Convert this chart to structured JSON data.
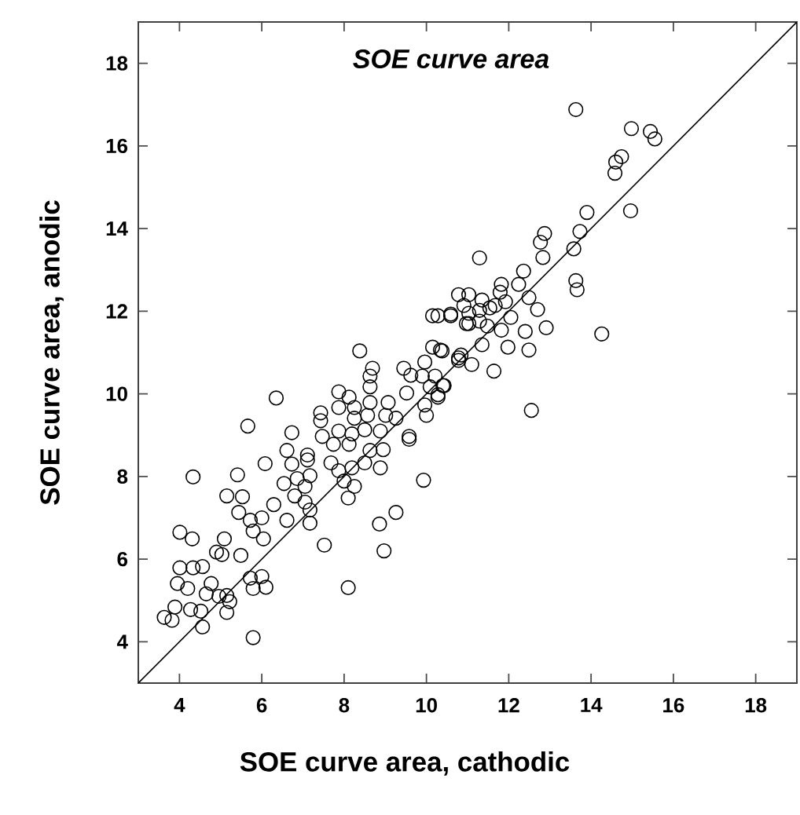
{
  "chart_data": {
    "type": "scatter",
    "title": "SOE curve area",
    "xlabel": "SOE curve area, cathodic",
    "ylabel": "SOE curve area, anodic",
    "xlim": [
      3,
      19
    ],
    "ylim": [
      3,
      19
    ],
    "xticks": [
      4,
      6,
      8,
      10,
      12,
      14,
      16,
      18
    ],
    "yticks": [
      4,
      6,
      8,
      10,
      12,
      14,
      16,
      18
    ],
    "series": [
      {
        "marker": "circle",
        "color": "#000000",
        "x": [
          13.63,
          14.98,
          15.44,
          15.55,
          14.74,
          14.6,
          14.58,
          13.9,
          14.96,
          13.73,
          12.87,
          12.77,
          13.58,
          11.29,
          12.83,
          12.36,
          13.63,
          13.66,
          11.82,
          12.24,
          10.78,
          11.03,
          11.79,
          12.49,
          11.35,
          10.91,
          11.67,
          11.92,
          10.59,
          11.03,
          11.29,
          11.54,
          12.05,
          12.7,
          11.03,
          11.29,
          11.48,
          11.82,
          12.4,
          12.91,
          14.26,
          10.28,
          11.35,
          11.98,
          12.49,
          10.84,
          10.78,
          11.1,
          11.64,
          10.34,
          10.4,
          10.28,
          12.55,
          10.15,
          10.59,
          10.97,
          8.38,
          10.15,
          10.38,
          10.78,
          8.69,
          8.63,
          8.63,
          9.45,
          9.96,
          9.62,
          9.9,
          10.21,
          10.09,
          10.43,
          10.28,
          9.52,
          9.96,
          10.0,
          6.35,
          7.87,
          8.12,
          7.43,
          7.43,
          7.87,
          8.25,
          8.63,
          9.07,
          8.25,
          8.57,
          9.01,
          9.26,
          5.66,
          6.73,
          7.47,
          7.87,
          8.19,
          8.5,
          8.88,
          9.58,
          7.74,
          8.12,
          6.61,
          7.11,
          8.63,
          8.95,
          4.33,
          5.41,
          6.08,
          6.73,
          7.11,
          6.54,
          6.86,
          7.05,
          7.17,
          6.8,
          7.05,
          7.17,
          6.61,
          7.17,
          7.68,
          7.87,
          8.19,
          8.5,
          8.88,
          8.0,
          8.25,
          8.1,
          9.58,
          9.93,
          9.26,
          8.86,
          8.97,
          7.52,
          8.1,
          5.15,
          5.53,
          5.44,
          6.29,
          5.72,
          6.0,
          5.79,
          6.04,
          4.01,
          4.31,
          5.09,
          4.9,
          5.03,
          5.49,
          4.01,
          4.33,
          4.56,
          3.95,
          4.2,
          4.77,
          4.65,
          4.96,
          5.15,
          5.72,
          6.0,
          5.79,
          6.1,
          5.22,
          5.15,
          3.89,
          4.27,
          4.52,
          3.63,
          3.82,
          4.56,
          5.79
        ],
        "values": [
          16.88,
          16.42,
          16.35,
          16.17,
          15.74,
          15.61,
          15.34,
          14.39,
          14.43,
          13.93,
          13.88,
          13.67,
          13.51,
          13.29,
          13.3,
          12.97,
          12.74,
          12.52,
          12.65,
          12.65,
          12.4,
          12.4,
          12.46,
          12.33,
          12.27,
          12.14,
          12.14,
          12.23,
          11.89,
          11.95,
          12.02,
          12.08,
          11.85,
          12.04,
          11.7,
          11.76,
          11.64,
          11.54,
          11.51,
          11.6,
          11.45,
          11.89,
          11.19,
          11.13,
          11.06,
          10.94,
          10.81,
          10.71,
          10.55,
          11.06,
          10.2,
          9.98,
          9.6,
          11.89,
          11.93,
          11.7,
          11.04,
          11.13,
          11.04,
          10.87,
          10.62,
          10.43,
          10.17,
          10.62,
          10.77,
          10.45,
          10.43,
          10.43,
          10.17,
          10.2,
          9.92,
          10.02,
          9.73,
          9.48,
          9.9,
          10.05,
          9.92,
          9.54,
          9.35,
          9.67,
          9.67,
          9.79,
          9.79,
          9.41,
          9.48,
          9.48,
          9.41,
          9.22,
          9.06,
          8.97,
          9.1,
          9.03,
          9.13,
          9.1,
          8.97,
          8.78,
          8.78,
          8.63,
          8.52,
          8.63,
          8.65,
          7.99,
          8.04,
          8.31,
          8.3,
          8.4,
          7.83,
          7.95,
          7.76,
          8.02,
          7.53,
          7.38,
          7.19,
          6.94,
          6.87,
          8.33,
          8.14,
          8.21,
          8.33,
          8.21,
          7.89,
          7.76,
          7.48,
          8.9,
          7.91,
          7.13,
          6.85,
          6.2,
          6.34,
          5.31,
          7.53,
          7.51,
          7.13,
          7.32,
          6.94,
          7.0,
          6.68,
          6.49,
          6.65,
          6.49,
          6.49,
          6.17,
          6.11,
          6.09,
          5.79,
          5.79,
          5.82,
          5.41,
          5.29,
          5.41,
          5.16,
          5.1,
          5.12,
          5.54,
          5.58,
          5.29,
          5.32,
          4.97,
          4.71,
          4.84,
          4.78,
          4.74,
          4.59,
          4.52,
          4.36,
          4.1
        ]
      },
      {
        "type": "line",
        "color": "#000000",
        "line_style": "solid",
        "x": [
          3,
          19
        ],
        "values": [
          3,
          19
        ]
      }
    ]
  }
}
